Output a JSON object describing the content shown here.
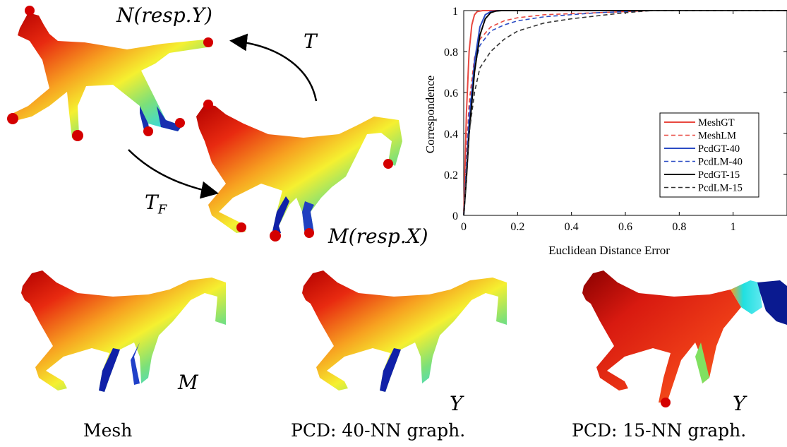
{
  "labels": {
    "n_resp_y": "N(resp.Y)",
    "t": "T",
    "t_f": "T",
    "t_f_sub": "F",
    "m_resp_x": "M(resp.X)",
    "m": "M",
    "y1": "Y",
    "y2": "Y"
  },
  "captions": {
    "mesh": "Mesh",
    "pcd40": "PCD: 40-NN graph.",
    "pcd15": "PCD: 15-NN graph."
  },
  "chart_data": {
    "type": "line",
    "title": "",
    "xlabel": "Euclidean Distance Error",
    "ylabel": "Correspondence",
    "xlim": [
      0,
      1.2
    ],
    "ylim": [
      0,
      1
    ],
    "xticks": [
      "0",
      "0.2",
      "0.4",
      "0.6",
      "0.8",
      "1"
    ],
    "yticks": [
      "0",
      "0.2",
      "0.4",
      "0.6",
      "0.8",
      "1"
    ],
    "grid": false,
    "legend_position": "bottom-right",
    "series": [
      {
        "name": "MeshGT",
        "color": "#e8473f",
        "dash": "solid",
        "x": [
          0,
          0.005,
          0.01,
          0.02,
          0.03,
          0.04,
          0.05,
          0.07,
          1.2
        ],
        "y": [
          0,
          0.25,
          0.5,
          0.8,
          0.93,
          0.98,
          0.995,
          1.0,
          1.0
        ]
      },
      {
        "name": "MeshLM",
        "color": "#e8473f",
        "dash": "dashed",
        "x": [
          0,
          0.01,
          0.02,
          0.04,
          0.06,
          0.1,
          0.15,
          0.2,
          0.3,
          0.5,
          0.7,
          1.2
        ],
        "y": [
          0,
          0.3,
          0.55,
          0.77,
          0.86,
          0.92,
          0.95,
          0.965,
          0.98,
          0.99,
          1.0,
          1.0
        ]
      },
      {
        "name": "PcdGT-40",
        "color": "#2b4cc4",
        "dash": "solid",
        "x": [
          0,
          0.01,
          0.02,
          0.04,
          0.06,
          0.08,
          0.1,
          0.13,
          1.2
        ],
        "y": [
          0,
          0.2,
          0.45,
          0.75,
          0.92,
          0.98,
          0.995,
          1.0,
          1.0
        ]
      },
      {
        "name": "PcdLM-40",
        "color": "#2b4cc4",
        "dash": "dashed",
        "x": [
          0,
          0.01,
          0.02,
          0.04,
          0.06,
          0.1,
          0.15,
          0.2,
          0.3,
          0.5,
          0.7,
          1.2
        ],
        "y": [
          0,
          0.25,
          0.5,
          0.73,
          0.83,
          0.9,
          0.93,
          0.95,
          0.97,
          0.99,
          1.0,
          1.0
        ]
      },
      {
        "name": "PcdGT-15",
        "color": "#000000",
        "dash": "solid",
        "x": [
          0,
          0.01,
          0.02,
          0.04,
          0.06,
          0.08,
          0.1,
          0.12,
          0.14,
          1.2
        ],
        "y": [
          0,
          0.18,
          0.4,
          0.7,
          0.88,
          0.96,
          0.99,
          0.998,
          1.0,
          1.0
        ]
      },
      {
        "name": "PcdLM-15",
        "color": "#333333",
        "dash": "dashed",
        "x": [
          0,
          0.01,
          0.02,
          0.04,
          0.06,
          0.1,
          0.15,
          0.2,
          0.25,
          0.3,
          0.4,
          0.5,
          0.6,
          0.7,
          1.2
        ],
        "y": [
          0,
          0.2,
          0.4,
          0.6,
          0.72,
          0.8,
          0.86,
          0.9,
          0.92,
          0.94,
          0.96,
          0.975,
          0.99,
          1.0,
          1.0
        ]
      }
    ]
  }
}
